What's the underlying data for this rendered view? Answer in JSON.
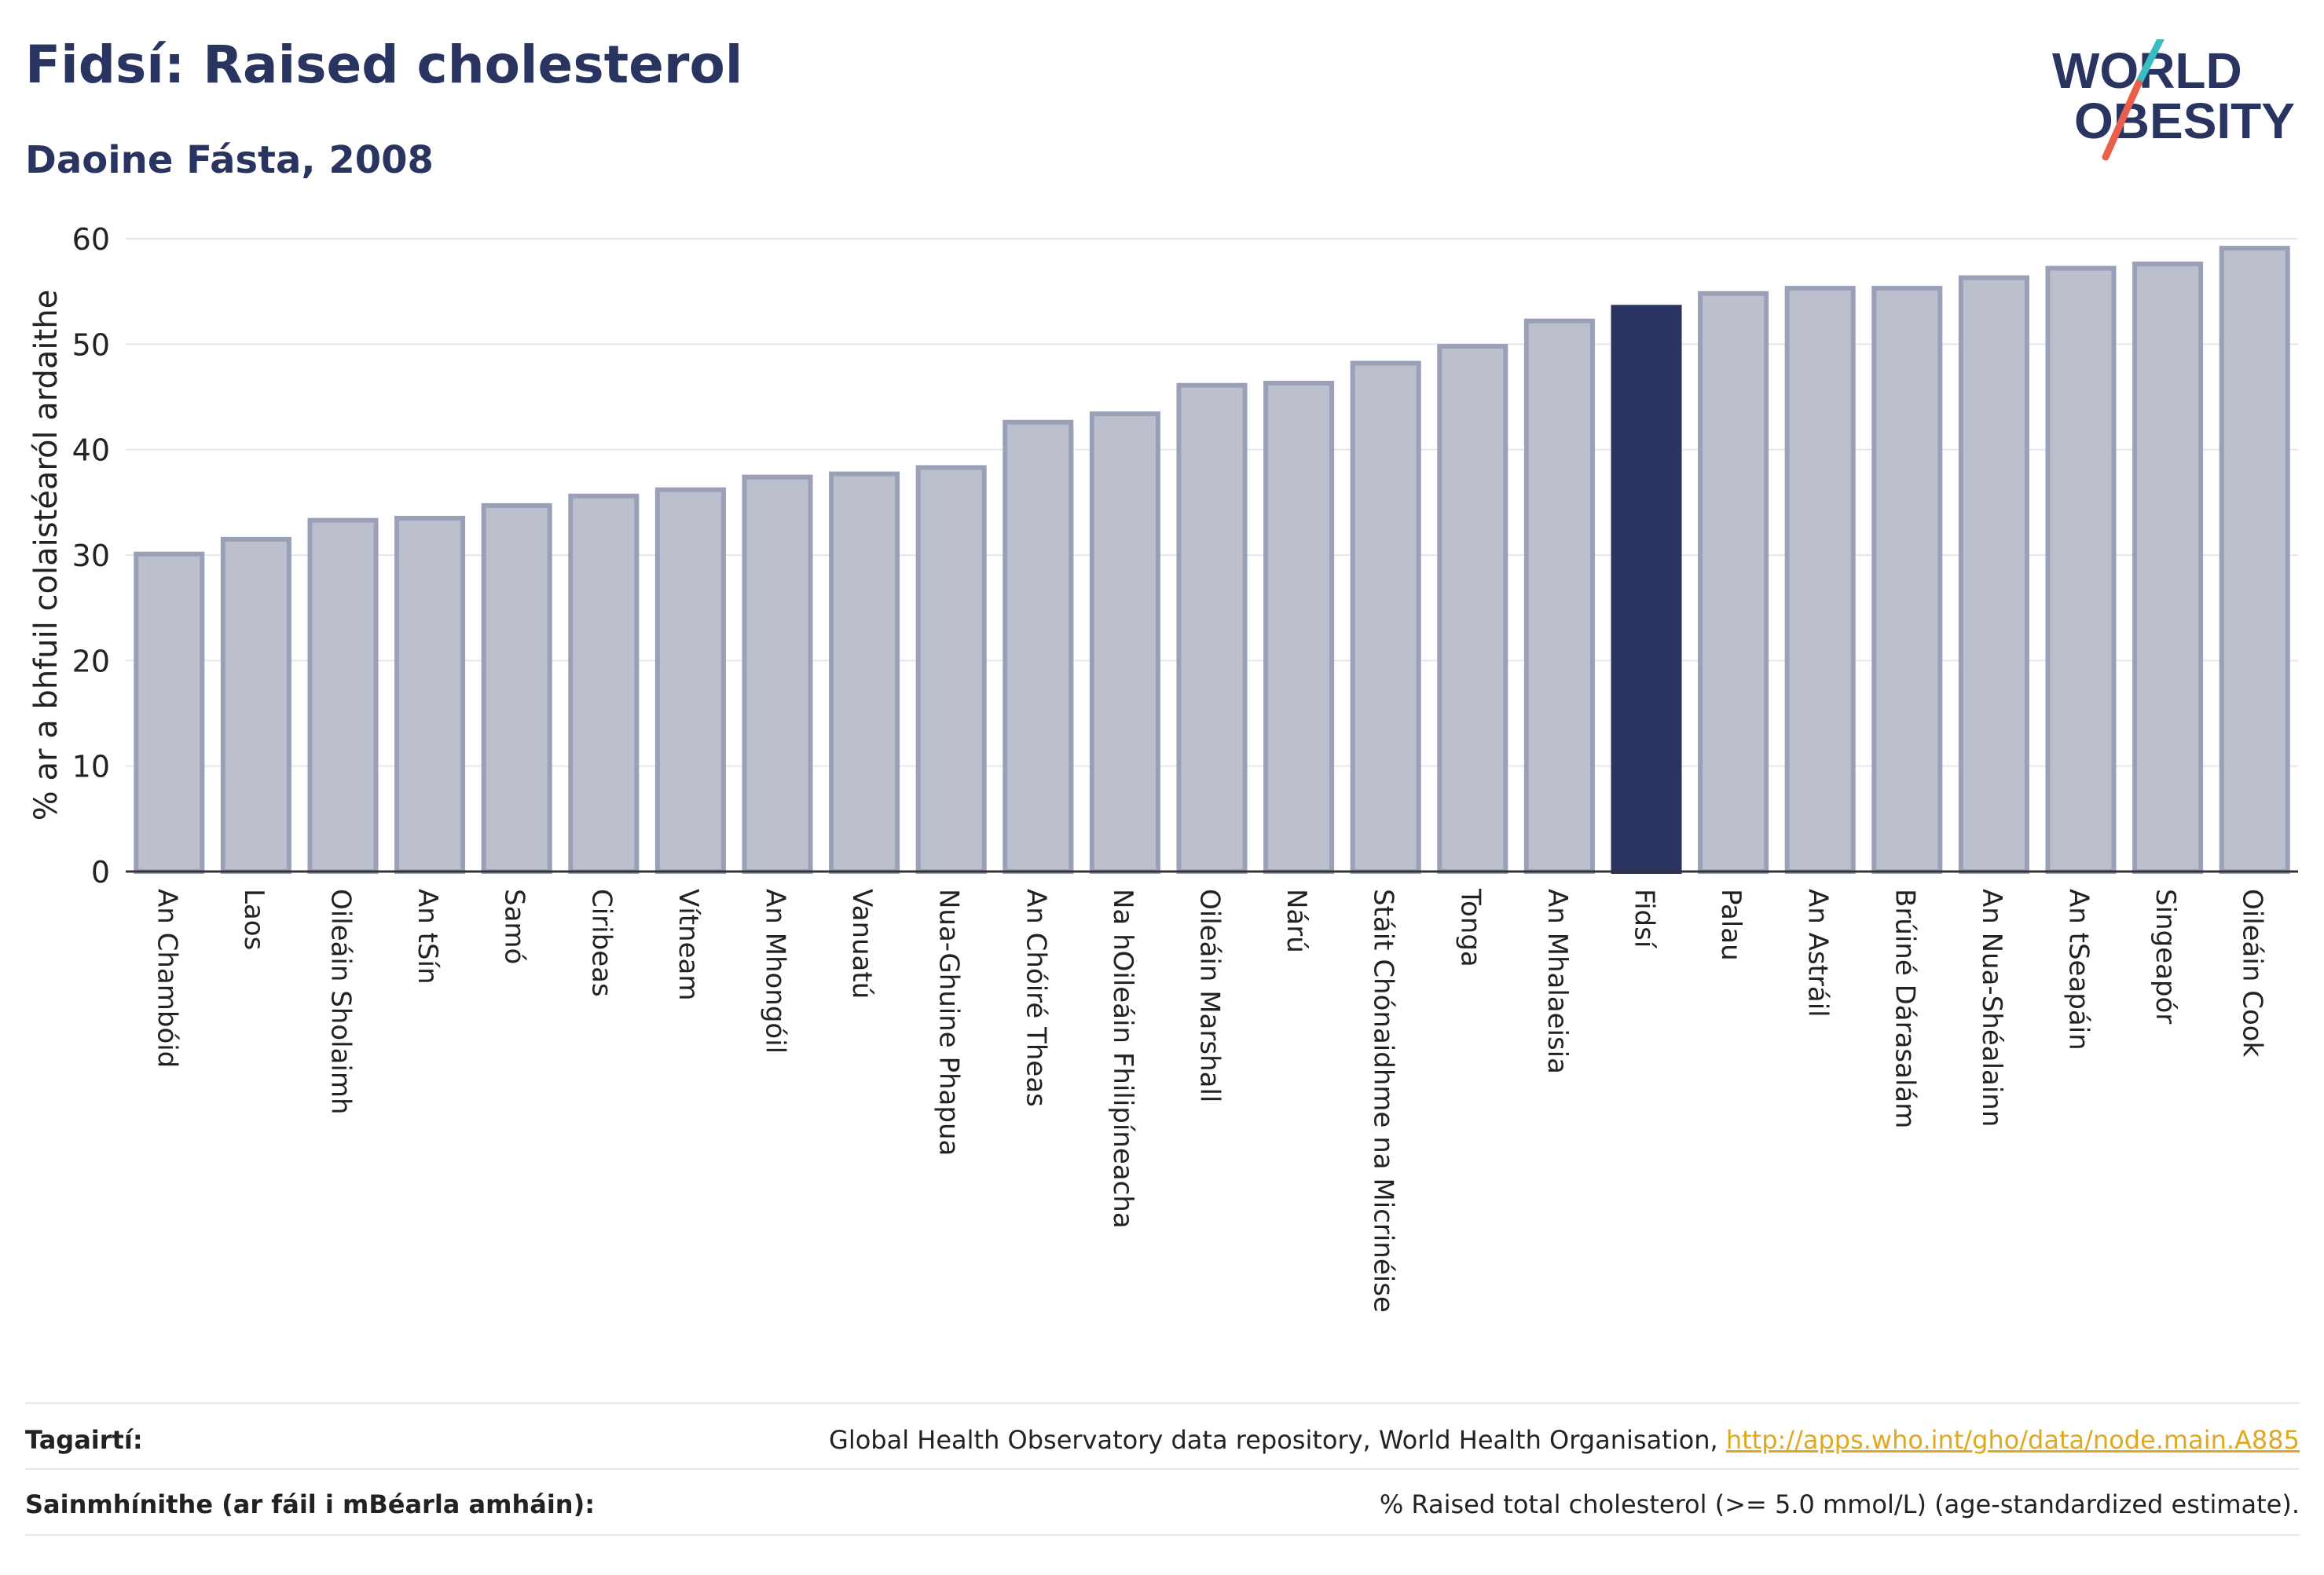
{
  "header": {
    "title": "Fidsí: Raised cholesterol",
    "subtitle": "Daoine Fásta, 2008"
  },
  "logo": {
    "line1": "WORLD",
    "line2": "OBESITY",
    "accent_colors": [
      "#3bbcc0",
      "#e8604c"
    ]
  },
  "chart_data": {
    "type": "bar",
    "ylabel": "% ar a bhfuil colaistéaról ardaithe",
    "xlabel": "",
    "ylim": [
      0,
      60
    ],
    "yticks": [
      0,
      10,
      20,
      30,
      40,
      50,
      60
    ],
    "grid": true,
    "highlight_category": "Fidsí",
    "colors": {
      "bar": "#bcc0cd",
      "bar_edge": "#9aa0b8",
      "highlight": "#2a3460"
    },
    "categories": [
      "An Chambóid",
      "Laos",
      "Oileáin Sholaimh",
      "An tSín",
      "Samó",
      "Ciribeas",
      "Vítneam",
      "An Mhongóil",
      "Vanuatú",
      "Nua-Ghuine Phapua",
      "An Chóiré Theas",
      "Na hOileáin Fhilipíneacha",
      "Oileáin Marshall",
      "Nárú",
      "Stáit Chónaidhme na Micrinéise",
      "Tonga",
      "An Mhalaeisia",
      "Fidsí",
      "Palau",
      "An Astráil",
      "Brúiné Dárasalám",
      "An Nua-Shéalainn",
      "An tSeapáin",
      "Singeapór",
      "Oileáin Cook"
    ],
    "values": [
      30.1,
      31.5,
      33.3,
      33.5,
      34.7,
      35.6,
      36.2,
      37.4,
      37.7,
      38.3,
      42.6,
      43.4,
      46.1,
      46.3,
      48.2,
      49.8,
      52.2,
      53.5,
      54.8,
      55.3,
      55.3,
      56.3,
      57.2,
      57.6,
      59.1
    ]
  },
  "references": {
    "label": "Tagairtí:",
    "text": "Global Health Observatory data repository, World Health Organisation, ",
    "link": "http://apps.who.int/gho/data/node.main.A885"
  },
  "definitions": {
    "label": "Sainmhínithe (ar fáil i mBéarla amháin):",
    "text": "% Raised total cholesterol (>= 5.0 mmol/L) (age-standardized estimate)."
  }
}
